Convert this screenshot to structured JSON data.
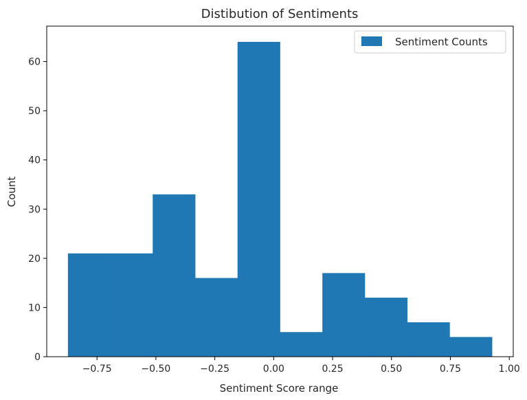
{
  "chart_data": {
    "type": "bar",
    "title": "Distibution of Sentiments",
    "xlabel": "Sentiment Score range",
    "ylabel": "Count",
    "xlim": [
      -0.9634,
      1.0169
    ],
    "ylim": [
      0,
      67.2
    ],
    "bin_edges": [
      -0.8734,
      -0.6934,
      -0.5134,
      -0.3334,
      -0.1534,
      0.0266,
      0.2066,
      0.3866,
      0.5666,
      0.7466,
      0.9266
    ],
    "series": [
      {
        "name": "Sentiment Counts",
        "values": [
          21,
          21,
          33,
          16,
          64,
          5,
          17,
          12,
          7,
          4
        ]
      }
    ],
    "xticks": [
      -0.75,
      -0.5,
      -0.25,
      0.0,
      0.25,
      0.5,
      0.75,
      1.0
    ],
    "xtick_labels": [
      "−0.75",
      "−0.50",
      "−0.25",
      "0.00",
      "0.25",
      "0.50",
      "0.75",
      "1.00"
    ],
    "yticks": [
      0,
      10,
      20,
      30,
      40,
      50,
      60
    ],
    "ytick_labels": [
      "0",
      "10",
      "20",
      "30",
      "40",
      "50",
      "60"
    ],
    "legend": {
      "label": "Sentiment Counts",
      "placement": "top-right"
    },
    "colors": {
      "bar": "#1f77b4",
      "axis": "#000000",
      "text": "#262626"
    },
    "grid": false
  }
}
